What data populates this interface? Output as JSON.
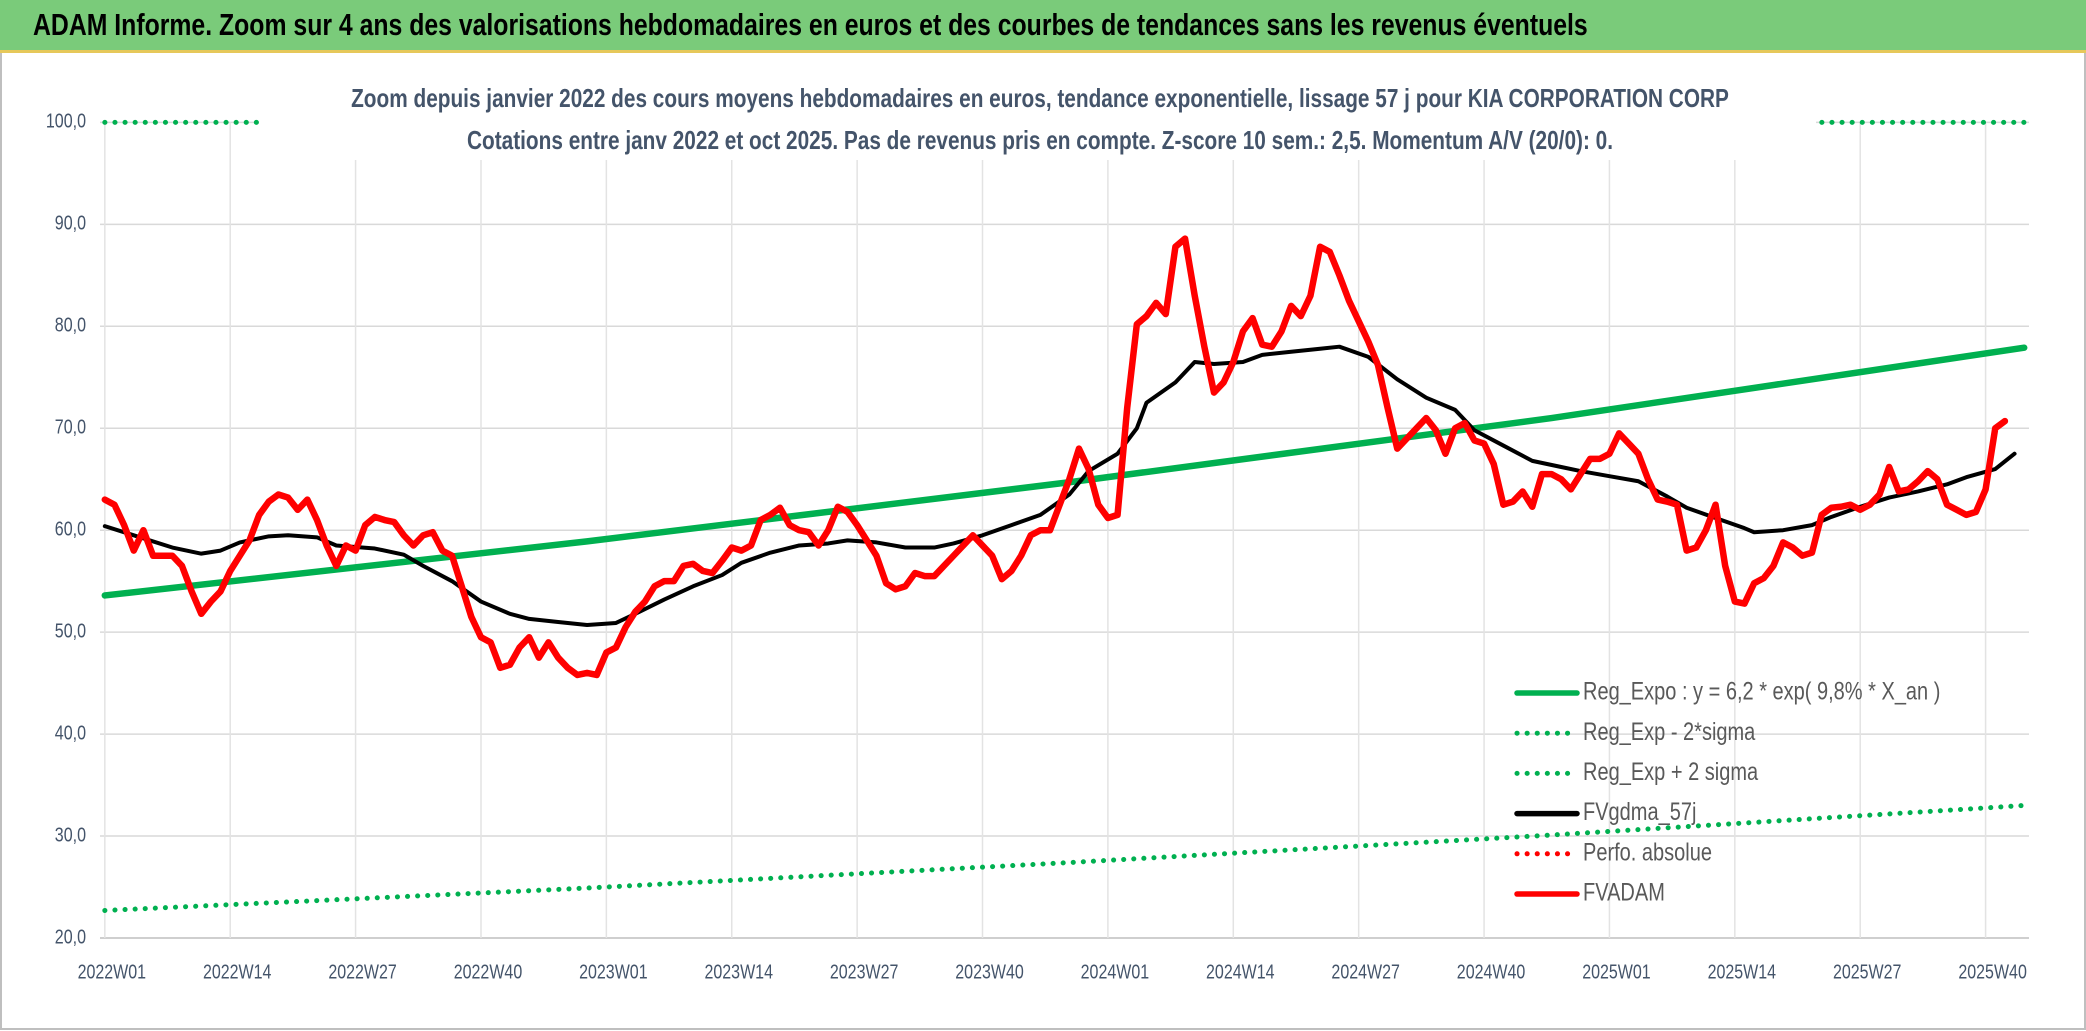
{
  "chart_data": {
    "type": "line",
    "title": "ADAM Informe. Zoom sur 4 ans des valorisations hebdomadaires en euros et des courbes de tendances sans les revenus éventuels",
    "subtitle": [
      "Zoom depuis janvier 2022 des cours moyens hebdomadaires en euros, tendance exponentielle, lissage 57 j pour KIA CORPORATION CORP",
      "Cotations entre janv 2022 et oct 2025. Pas de revenus pris en compte. Z-score 10 sem.: 2,5. Momentum A/V (20/0): 0."
    ],
    "xlim": [
      -0.5,
      199.5
    ],
    "xticks": [
      {
        "value": 0,
        "label": "2022W01"
      },
      {
        "value": 13,
        "label": "2022W14"
      },
      {
        "value": 26,
        "label": "2022W27"
      },
      {
        "value": 39,
        "label": "2022W40"
      },
      {
        "value": 52,
        "label": "2023W01"
      },
      {
        "value": 65,
        "label": "2023W14"
      },
      {
        "value": 78,
        "label": "2023W27"
      },
      {
        "value": 91,
        "label": "2023W40"
      },
      {
        "value": 104,
        "label": "2024W01"
      },
      {
        "value": 117,
        "label": "2024W14"
      },
      {
        "value": 130,
        "label": "2024W27"
      },
      {
        "value": 143,
        "label": "2024W40"
      },
      {
        "value": 156,
        "label": "2025W01"
      },
      {
        "value": 169,
        "label": "2025W14"
      },
      {
        "value": 182,
        "label": "2025W27"
      },
      {
        "value": 195,
        "label": "2025W40"
      }
    ],
    "ylim": [
      20,
      100
    ],
    "yticks": [
      {
        "value": 20,
        "label": "20,0"
      },
      {
        "value": 30,
        "label": "30,0"
      },
      {
        "value": 40,
        "label": "40,0"
      },
      {
        "value": 50,
        "label": "50,0"
      },
      {
        "value": 60,
        "label": "60,0"
      },
      {
        "value": 70,
        "label": "70,0"
      },
      {
        "value": 80,
        "label": "80,0"
      },
      {
        "value": 90,
        "label": "90,0"
      },
      {
        "value": 100,
        "label": "100,0"
      }
    ],
    "grid": true,
    "legend": "lower right",
    "series": [
      {
        "name": "Reg_Expo : y = 6,2 * exp( 9,8% *  X_an )",
        "color": "#00b050",
        "line_style": "solid",
        "x": [
          0,
          50,
          100,
          150,
          199
        ],
        "values": [
          53.6,
          58.9,
          64.7,
          71.0,
          77.9
        ]
      },
      {
        "name": "Reg_Exp - 2*sigma",
        "color": "#00b050",
        "line_style": "dotted",
        "x": [
          0,
          50,
          100,
          150,
          199
        ],
        "values": [
          22.7,
          24.9,
          27.4,
          30.1,
          33.0
        ]
      },
      {
        "name": "Reg_Exp + 2 sigma",
        "color": "#00b050",
        "line_style": "dotted",
        "x": [
          0,
          199
        ],
        "values": [
          100,
          100
        ]
      },
      {
        "name": "FVgdma_57j",
        "color": "#000000",
        "line_style": "solid",
        "x": [
          0,
          3,
          7,
          10,
          12,
          14,
          17,
          19,
          22,
          24,
          28,
          31,
          33,
          36,
          39,
          42,
          44,
          47,
          50,
          53,
          55,
          58,
          61,
          64,
          66,
          69,
          72,
          75,
          77,
          80,
          83,
          86,
          88,
          91,
          94,
          97,
          100,
          102,
          105,
          107,
          108,
          111,
          113,
          115,
          118,
          120,
          123,
          126,
          128,
          131,
          134,
          137,
          140,
          142,
          145,
          148,
          151,
          153,
          156,
          159,
          162,
          164,
          167,
          170,
          171,
          174,
          177,
          179,
          182,
          185,
          188,
          191,
          193,
          196,
          198
        ],
        "values": [
          60.4,
          59.5,
          58.3,
          57.7,
          58.0,
          58.8,
          59.4,
          59.5,
          59.3,
          58.5,
          58.2,
          57.6,
          56.5,
          55.0,
          53.0,
          51.8,
          51.3,
          51.0,
          50.7,
          50.9,
          51.8,
          53.2,
          54.5,
          55.6,
          56.8,
          57.8,
          58.5,
          58.7,
          59.0,
          58.8,
          58.3,
          58.3,
          58.7,
          59.5,
          60.5,
          61.5,
          63.5,
          65.8,
          67.5,
          70.0,
          72.5,
          74.5,
          76.5,
          76.3,
          76.5,
          77.2,
          77.5,
          77.8,
          78.0,
          77.0,
          74.8,
          73.0,
          71.8,
          69.8,
          68.3,
          66.8,
          66.2,
          65.8,
          65.3,
          64.8,
          63.3,
          62.2,
          61.2,
          60.2,
          59.8,
          60.0,
          60.5,
          61.3,
          62.3,
          63.2,
          63.8,
          64.5,
          65.2,
          66.0,
          67.5
        ]
      },
      {
        "name": "Perfo. absolue",
        "color": "#ff0000",
        "line_style": "dotted",
        "x": [],
        "values": []
      },
      {
        "name": "FVADAM",
        "color": "#ff0000",
        "line_style": "solid",
        "x": [
          0,
          1,
          2,
          3,
          4,
          5,
          6,
          7,
          8,
          9,
          10,
          11,
          12,
          13,
          14,
          15,
          16,
          17,
          18,
          19,
          20,
          21,
          22,
          23,
          24,
          25,
          26,
          27,
          28,
          29,
          30,
          31,
          32,
          33,
          34,
          35,
          36,
          37,
          38,
          39,
          40,
          41,
          42,
          43,
          44,
          45,
          46,
          47,
          48,
          49,
          50,
          51,
          52,
          53,
          54,
          55,
          56,
          57,
          58,
          59,
          60,
          61,
          62,
          63,
          64,
          65,
          66,
          67,
          68,
          69,
          70,
          71,
          72,
          73,
          74,
          75,
          76,
          77,
          78,
          79,
          80,
          81,
          82,
          83,
          84,
          85,
          86,
          87,
          88,
          89,
          90,
          91,
          92,
          93,
          94,
          95,
          96,
          97,
          98,
          99,
          100,
          101,
          102,
          103,
          104,
          105,
          106,
          107,
          108,
          109,
          110,
          111,
          112,
          113,
          114,
          115,
          116,
          117,
          118,
          119,
          120,
          121,
          122,
          123,
          124,
          125,
          126,
          127,
          128,
          129,
          130,
          131,
          132,
          133,
          134,
          135,
          136,
          137,
          138,
          139,
          140,
          141,
          142,
          143,
          144,
          145,
          146,
          147,
          148,
          149,
          150,
          151,
          152,
          153,
          154,
          155,
          156,
          157,
          158,
          159,
          160,
          161,
          162,
          163,
          164,
          165,
          166,
          167,
          168,
          169,
          170,
          171,
          172,
          173,
          174,
          175,
          176,
          177,
          178,
          179,
          180,
          181,
          182,
          183,
          184,
          185,
          186,
          187,
          188,
          189,
          190,
          191,
          192,
          193,
          194,
          195,
          196,
          197
        ],
        "values": [
          63.0,
          62.5,
          60.5,
          58.0,
          60.0,
          57.5,
          57.5,
          57.5,
          56.5,
          54.0,
          51.8,
          53.0,
          54.0,
          56.0,
          57.5,
          59.0,
          61.5,
          62.8,
          63.5,
          63.2,
          62.0,
          63.0,
          61.0,
          58.5,
          56.5,
          58.5,
          58.0,
          60.5,
          61.3,
          61.0,
          60.8,
          59.5,
          58.5,
          59.5,
          59.8,
          58.0,
          57.5,
          54.5,
          51.5,
          49.5,
          49.0,
          46.5,
          46.8,
          48.5,
          49.5,
          47.5,
          49.0,
          47.5,
          46.5,
          45.8,
          46.0,
          45.8,
          48.0,
          48.5,
          50.5,
          52.0,
          53.0,
          54.5,
          55.0,
          55.0,
          56.5,
          56.7,
          56.0,
          55.8,
          57.0,
          58.3,
          58.0,
          58.5,
          61.0,
          61.5,
          62.2,
          60.5,
          60.0,
          59.8,
          58.5,
          60.0,
          62.3,
          61.8,
          60.5,
          59.0,
          57.5,
          54.8,
          54.2,
          54.5,
          55.8,
          55.5,
          55.5,
          56.5,
          57.5,
          58.5,
          59.5,
          58.5,
          57.5,
          55.2,
          56.0,
          57.5,
          59.5,
          60.0,
          60.0,
          62.5,
          65.0,
          68.0,
          66.0,
          62.5,
          61.2,
          61.5,
          72.0,
          80.2,
          81.0,
          82.3,
          81.2,
          87.8,
          88.6,
          83.0,
          78.0,
          73.5,
          74.5,
          76.5,
          79.5,
          80.8,
          78.2,
          78.0,
          79.5,
          82.0,
          81.0,
          83.0,
          87.8,
          87.3,
          85.0,
          82.5,
          80.5,
          78.5,
          76.2,
          72.0,
          68.0,
          69.0,
          70.0,
          71.0,
          69.8,
          67.5,
          70.0,
          70.5,
          68.8,
          68.5,
          66.5,
          62.5,
          62.8,
          63.8,
          62.3,
          65.5,
          65.5,
          65.0,
          64.0,
          65.5,
          67.0,
          67.0,
          67.5,
          69.5,
          68.5,
          67.5,
          65.0,
          63.0,
          62.8,
          62.5,
          58.0,
          58.3,
          60.0,
          62.5,
          56.5,
          53.0,
          52.8,
          54.8,
          55.3,
          56.5,
          58.8,
          58.3,
          57.5,
          57.8,
          61.5,
          62.2,
          62.3,
          62.5,
          62.0,
          62.5,
          63.5,
          66.2,
          63.8,
          64.0,
          64.8,
          65.8,
          65.0,
          62.5,
          62.0,
          61.5,
          61.8,
          64.0,
          70.0,
          70.7
        ]
      }
    ]
  }
}
